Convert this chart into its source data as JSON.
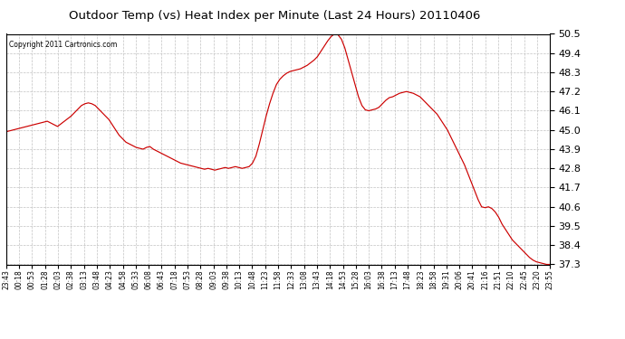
{
  "title": "Outdoor Temp (vs) Heat Index per Minute (Last 24 Hours) 20110406",
  "copyright": "Copyright 2011 Cartronics.com",
  "line_color": "#cc0000",
  "bg_color": "#ffffff",
  "plot_bg_color": "#ffffff",
  "grid_color": "#bbbbbb",
  "ylim": [
    37.3,
    50.5
  ],
  "yticks": [
    37.3,
    38.4,
    39.5,
    40.6,
    41.7,
    42.8,
    43.9,
    45.0,
    46.1,
    47.2,
    48.3,
    49.4,
    50.5
  ],
  "x_labels": [
    "23:43",
    "00:18",
    "00:53",
    "01:28",
    "02:03",
    "02:38",
    "03:13",
    "03:48",
    "04:23",
    "04:58",
    "05:33",
    "06:08",
    "06:43",
    "07:18",
    "07:53",
    "08:28",
    "09:03",
    "09:38",
    "10:13",
    "10:48",
    "11:23",
    "11:58",
    "12:33",
    "13:08",
    "13:43",
    "14:18",
    "14:53",
    "15:28",
    "16:03",
    "16:38",
    "17:13",
    "17:48",
    "18:23",
    "18:58",
    "19:31",
    "20:06",
    "20:41",
    "21:16",
    "21:51",
    "22:10",
    "22:45",
    "23:20",
    "23:55"
  ],
  "y_values": [
    44.9,
    44.95,
    45.0,
    45.05,
    45.1,
    45.15,
    45.2,
    45.25,
    45.3,
    45.35,
    45.4,
    45.45,
    45.5,
    45.4,
    45.3,
    45.2,
    45.35,
    45.5,
    45.65,
    45.8,
    46.0,
    46.2,
    46.4,
    46.5,
    46.55,
    46.5,
    46.4,
    46.2,
    46.0,
    45.8,
    45.6,
    45.3,
    45.0,
    44.7,
    44.5,
    44.3,
    44.2,
    44.1,
    44.0,
    43.95,
    43.9,
    44.0,
    44.05,
    43.9,
    43.8,
    43.7,
    43.6,
    43.5,
    43.4,
    43.3,
    43.2,
    43.1,
    43.05,
    43.0,
    42.95,
    42.9,
    42.85,
    42.8,
    42.75,
    42.8,
    42.75,
    42.7,
    42.75,
    42.8,
    42.85,
    42.8,
    42.85,
    42.9,
    42.85,
    42.8,
    42.85,
    42.9,
    43.1,
    43.5,
    44.2,
    45.0,
    45.8,
    46.5,
    47.1,
    47.6,
    47.9,
    48.1,
    48.25,
    48.35,
    48.4,
    48.45,
    48.5,
    48.6,
    48.7,
    48.85,
    49.0,
    49.2,
    49.5,
    49.8,
    50.1,
    50.35,
    50.5,
    50.45,
    50.2,
    49.7,
    49.0,
    48.3,
    47.6,
    46.9,
    46.4,
    46.15,
    46.1,
    46.15,
    46.2,
    46.3,
    46.5,
    46.7,
    46.85,
    46.9,
    47.0,
    47.1,
    47.15,
    47.2,
    47.15,
    47.1,
    47.0,
    46.9,
    46.7,
    46.5,
    46.3,
    46.1,
    45.9,
    45.6,
    45.3,
    45.0,
    44.6,
    44.2,
    43.8,
    43.4,
    43.0,
    42.5,
    42.0,
    41.5,
    41.0,
    40.6,
    40.55,
    40.6,
    40.5,
    40.3,
    40.0,
    39.6,
    39.3,
    39.0,
    38.7,
    38.5,
    38.3,
    38.1,
    37.9,
    37.7,
    37.55,
    37.45,
    37.4,
    37.35,
    37.3,
    37.3
  ]
}
